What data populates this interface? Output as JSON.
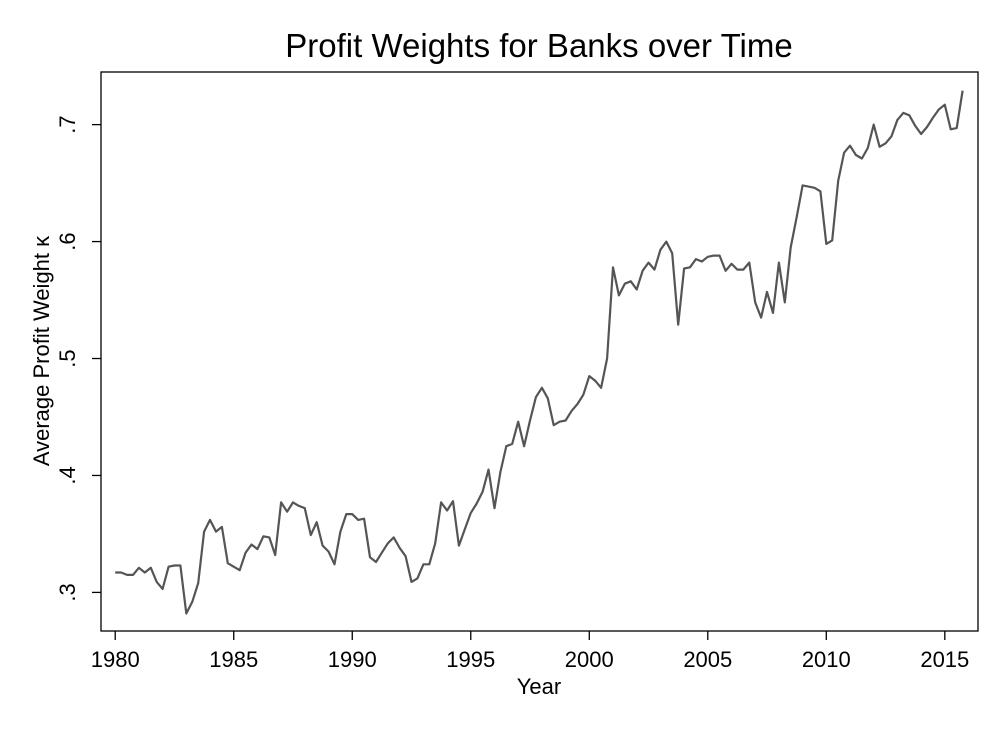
{
  "chart_data": {
    "type": "line",
    "title": "Profit Weights for Banks over Time",
    "xlabel": "Year",
    "ylabel": "Average Profit Weight κ",
    "xlim": [
      1979.4,
      2016.4
    ],
    "ylim": [
      0.267,
      0.745
    ],
    "xticks": [
      1980,
      1985,
      1990,
      1995,
      2000,
      2005,
      2010,
      2015
    ],
    "xtick_labels": [
      "1980",
      "1985",
      "1990",
      "1995",
      "2000",
      "2005",
      "2010",
      "2015"
    ],
    "yticks": [
      0.3,
      0.4,
      0.5,
      0.6,
      0.7
    ],
    "ytick_labels": [
      ".3",
      ".4",
      ".5",
      ".6",
      ".7"
    ],
    "grid": false,
    "legend": "none",
    "colors": {
      "line": "#555555",
      "frame": "#000000",
      "background": "#ffffff"
    },
    "series": [
      {
        "x": [
          1980.0,
          1980.25,
          1980.5,
          1980.75,
          1981.0,
          1981.25,
          1981.5,
          1981.75,
          1982.0,
          1982.25,
          1982.5,
          1982.75,
          1983.0,
          1983.25,
          1983.5,
          1983.75,
          1984.0,
          1984.25,
          1984.5,
          1984.75,
          1985.0,
          1985.25,
          1985.5,
          1985.75,
          1986.0,
          1986.25,
          1986.5,
          1986.75,
          1987.0,
          1987.25,
          1987.5,
          1987.75,
          1988.0,
          1988.25,
          1988.5,
          1988.75,
          1989.0,
          1989.25,
          1989.5,
          1989.75,
          1990.0,
          1990.25,
          1990.5,
          1990.75,
          1991.0,
          1991.25,
          1991.5,
          1991.75,
          1992.0,
          1992.25,
          1992.5,
          1992.75,
          1993.0,
          1993.25,
          1993.5,
          1993.75,
          1994.0,
          1994.25,
          1994.5,
          1994.75,
          1995.0,
          1995.25,
          1995.5,
          1995.75,
          1996.0,
          1996.25,
          1996.5,
          1996.75,
          1997.0,
          1997.25,
          1997.5,
          1997.75,
          1998.0,
          1998.25,
          1998.5,
          1998.75,
          1999.0,
          1999.25,
          1999.5,
          1999.75,
          2000.0,
          2000.25,
          2000.5,
          2000.75,
          2001.0,
          2001.25,
          2001.5,
          2001.75,
          2002.0,
          2002.25,
          2002.5,
          2002.75,
          2003.0,
          2003.25,
          2003.5,
          2003.75,
          2004.0,
          2004.25,
          2004.5,
          2004.75,
          2005.0,
          2005.25,
          2005.5,
          2005.75,
          2006.0,
          2006.25,
          2006.5,
          2006.75,
          2007.0,
          2007.25,
          2007.5,
          2007.75,
          2008.0,
          2008.25,
          2008.5,
          2008.75,
          2009.0,
          2009.25,
          2009.5,
          2009.75,
          2010.0,
          2010.25,
          2010.5,
          2010.75,
          2011.0,
          2011.25,
          2011.5,
          2011.75,
          2012.0,
          2012.25,
          2012.5,
          2012.75,
          2013.0,
          2013.25,
          2013.5,
          2013.75,
          2014.0,
          2014.25,
          2014.5,
          2014.75,
          2015.0,
          2015.25,
          2015.5,
          2015.75
        ],
        "y": [
          0.317,
          0.317,
          0.315,
          0.315,
          0.321,
          0.317,
          0.321,
          0.309,
          0.303,
          0.322,
          0.323,
          0.323,
          0.282,
          0.292,
          0.308,
          0.352,
          0.362,
          0.352,
          0.356,
          0.325,
          0.322,
          0.319,
          0.334,
          0.341,
          0.337,
          0.348,
          0.347,
          0.332,
          0.377,
          0.369,
          0.377,
          0.374,
          0.372,
          0.349,
          0.36,
          0.34,
          0.335,
          0.324,
          0.352,
          0.367,
          0.367,
          0.362,
          0.363,
          0.33,
          0.326,
          0.334,
          0.342,
          0.347,
          0.338,
          0.331,
          0.309,
          0.312,
          0.324,
          0.324,
          0.342,
          0.377,
          0.37,
          0.378,
          0.34,
          0.354,
          0.368,
          0.376,
          0.386,
          0.405,
          0.372,
          0.403,
          0.425,
          0.427,
          0.446,
          0.425,
          0.447,
          0.467,
          0.475,
          0.466,
          0.443,
          0.446,
          0.447,
          0.455,
          0.461,
          0.469,
          0.485,
          0.481,
          0.475,
          0.5,
          0.578,
          0.554,
          0.564,
          0.566,
          0.559,
          0.575,
          0.582,
          0.576,
          0.593,
          0.6,
          0.59,
          0.529,
          0.577,
          0.578,
          0.585,
          0.583,
          0.587,
          0.588,
          0.588,
          0.575,
          0.581,
          0.576,
          0.576,
          0.582,
          0.548,
          0.535,
          0.557,
          0.539,
          0.582,
          0.548,
          0.595,
          0.621,
          0.648,
          0.647,
          0.646,
          0.643,
          0.598,
          0.601,
          0.652,
          0.676,
          0.682,
          0.674,
          0.671,
          0.68,
          0.7,
          0.681,
          0.684,
          0.69,
          0.704,
          0.71,
          0.708,
          0.699,
          0.692,
          0.698,
          0.706,
          0.713,
          0.717,
          0.696,
          0.697,
          0.729
        ]
      }
    ]
  }
}
